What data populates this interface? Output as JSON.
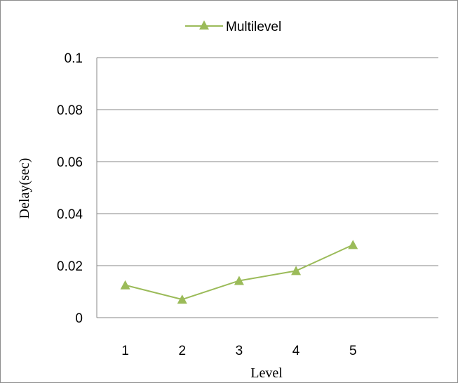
{
  "chart_data": {
    "type": "line",
    "title": "",
    "xlabel": "Level",
    "ylabel": "Delay(sec)",
    "categories": [
      "1",
      "2",
      "3",
      "4",
      "5"
    ],
    "x_slots": 6,
    "ylim": [
      0,
      0.1
    ],
    "yticks": [
      0,
      0.02,
      0.04,
      0.06,
      0.08,
      0.1
    ],
    "ytick_labels": [
      "0",
      "0.02",
      "0.04",
      "0.06",
      "0.08",
      "0.1"
    ],
    "grid": true,
    "legend_position": "top",
    "series": [
      {
        "name": "Multilevel",
        "values": [
          0.0125,
          0.007,
          0.0142,
          0.018,
          0.028
        ],
        "color": "#9bbb59",
        "marker": "triangle"
      }
    ]
  }
}
